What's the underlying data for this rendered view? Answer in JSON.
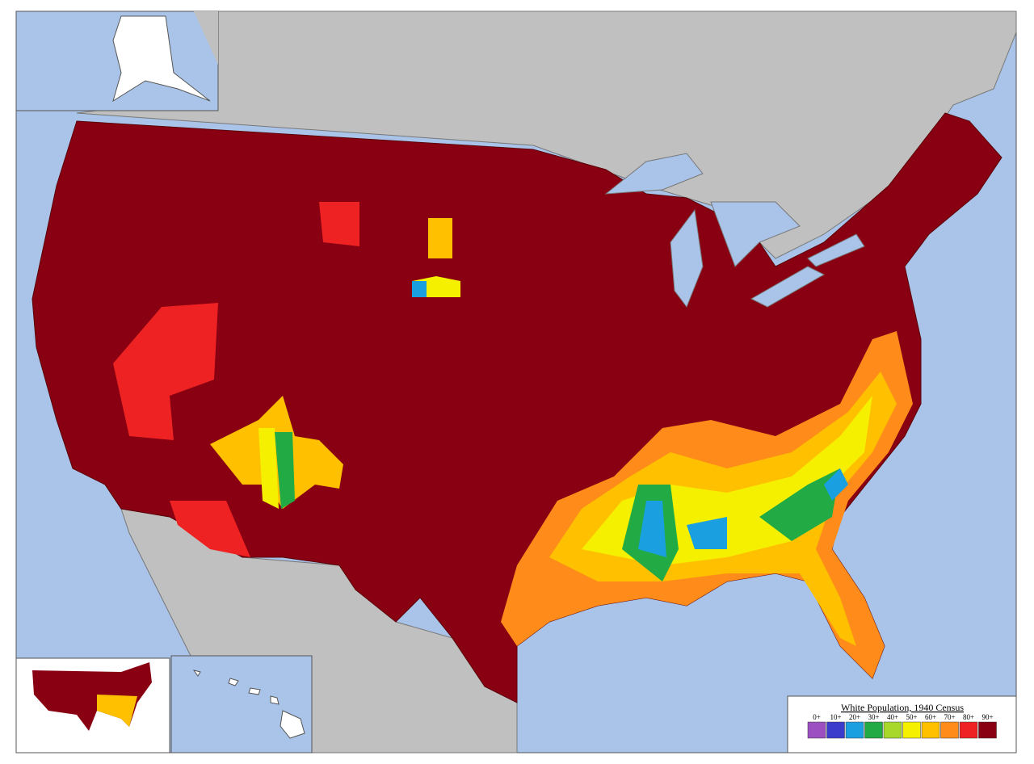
{
  "legend": {
    "title": "White Population, 1940 Census",
    "items": [
      {
        "label": "0+",
        "color": "#9b4fc0"
      },
      {
        "label": "10+",
        "color": "#3b3bcc"
      },
      {
        "label": "20+",
        "color": "#1aa0e0"
      },
      {
        "label": "30+",
        "color": "#22aa44"
      },
      {
        "label": "40+",
        "color": "#a8d82a"
      },
      {
        "label": "50+",
        "color": "#f5f000"
      },
      {
        "label": "60+",
        "color": "#ffc000"
      },
      {
        "label": "70+",
        "color": "#ff8c1a"
      },
      {
        "label": "80+",
        "color": "#ee2222"
      },
      {
        "label": "90+",
        "color": "#880011"
      }
    ]
  }
}
